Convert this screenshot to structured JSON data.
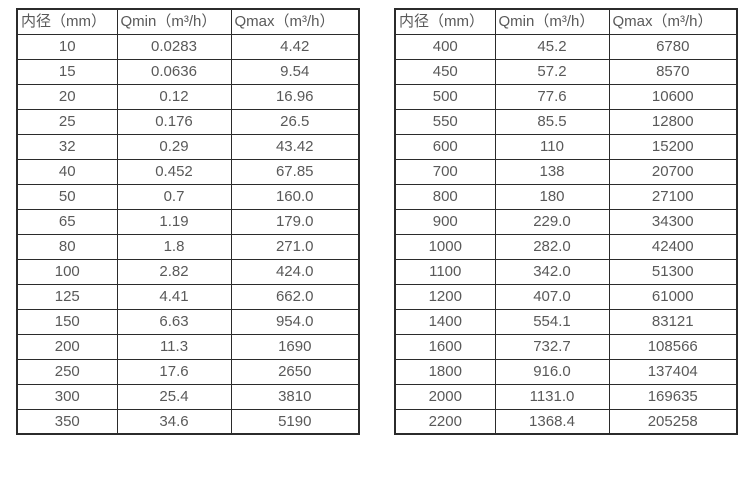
{
  "colors": {
    "border": "#2b2b2b",
    "text": "#595959",
    "background": "#ffffff"
  },
  "tables": [
    {
      "name": "flow-table-small-diameters",
      "headers": [
        "内径（mm）",
        "Qmin（m³/h）",
        "Qmax（m³/h）"
      ],
      "rows": [
        [
          "10",
          "0.0283",
          "4.42"
        ],
        [
          "15",
          "0.0636",
          "9.54"
        ],
        [
          "20",
          "0.12",
          "16.96"
        ],
        [
          "25",
          "0.176",
          "26.5"
        ],
        [
          "32",
          "0.29",
          "43.42"
        ],
        [
          "40",
          "0.452",
          "67.85"
        ],
        [
          "50",
          "0.7",
          "160.0"
        ],
        [
          "65",
          "1.19",
          "179.0"
        ],
        [
          "80",
          "1.8",
          "271.0"
        ],
        [
          "100",
          "2.82",
          "424.0"
        ],
        [
          "125",
          "4.41",
          "662.0"
        ],
        [
          "150",
          "6.63",
          "954.0"
        ],
        [
          "200",
          "11.3",
          "1690"
        ],
        [
          "250",
          "17.6",
          "2650"
        ],
        [
          "300",
          "25.4",
          "3810"
        ],
        [
          "350",
          "34.6",
          "5190"
        ]
      ]
    },
    {
      "name": "flow-table-large-diameters",
      "headers": [
        "内径（mm）",
        "Qmin（m³/h）",
        "Qmax（m³/h）"
      ],
      "rows": [
        [
          "400",
          "45.2",
          "6780"
        ],
        [
          "450",
          "57.2",
          "8570"
        ],
        [
          "500",
          "77.6",
          "10600"
        ],
        [
          "550",
          "85.5",
          "12800"
        ],
        [
          "600",
          "110",
          "15200"
        ],
        [
          "700",
          "138",
          "20700"
        ],
        [
          "800",
          "180",
          "27100"
        ],
        [
          "900",
          "229.0",
          "34300"
        ],
        [
          "1000",
          "282.0",
          "42400"
        ],
        [
          "1100",
          "342.0",
          "51300"
        ],
        [
          "1200",
          "407.0",
          "61000"
        ],
        [
          "1400",
          "554.1",
          "83121"
        ],
        [
          "1600",
          "732.7",
          "108566"
        ],
        [
          "1800",
          "916.0",
          "137404"
        ],
        [
          "2000",
          "1131.0",
          "169635"
        ],
        [
          "2200",
          "1368.4",
          "205258"
        ]
      ]
    }
  ]
}
